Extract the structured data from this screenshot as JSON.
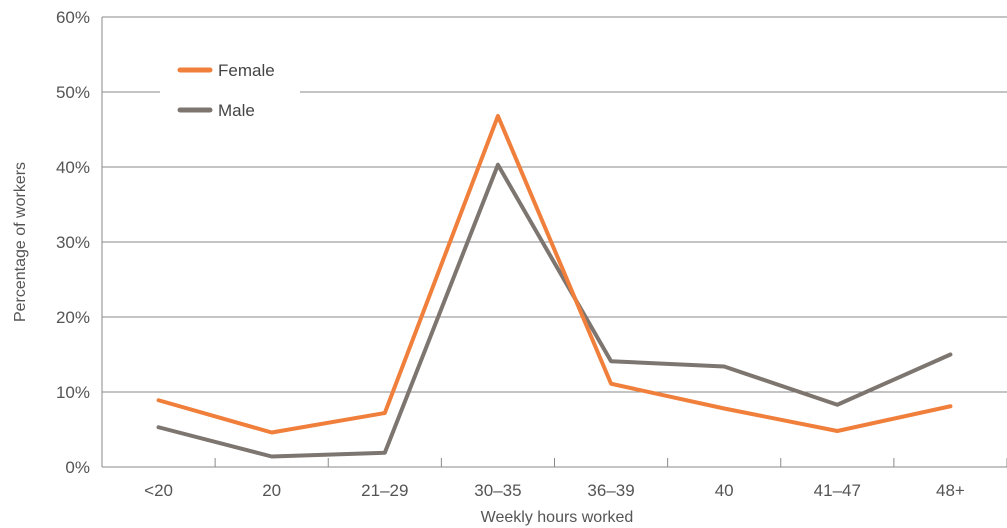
{
  "chart_data": {
    "type": "line",
    "title": "",
    "xlabel": "Weekly hours worked",
    "ylabel": "Percentage of workers",
    "categories": [
      "<20",
      "20",
      "21–29",
      "30–35",
      "36–39",
      "40",
      "41–47",
      "48+"
    ],
    "y_ticks": [
      "0%",
      "10%",
      "20%",
      "30%",
      "40%",
      "50%",
      "60%"
    ],
    "ylim": [
      0,
      60
    ],
    "grid": true,
    "legend_position": "top-left",
    "series": [
      {
        "name": "Female",
        "color": "#f07f3c",
        "values": [
          8.9,
          4.6,
          7.2,
          46.8,
          11.1,
          7.8,
          4.8,
          8.1
        ]
      },
      {
        "name": "Male",
        "color": "#7d756f",
        "values": [
          5.3,
          1.4,
          1.9,
          40.3,
          14.1,
          13.4,
          8.3,
          15.0
        ]
      }
    ]
  }
}
